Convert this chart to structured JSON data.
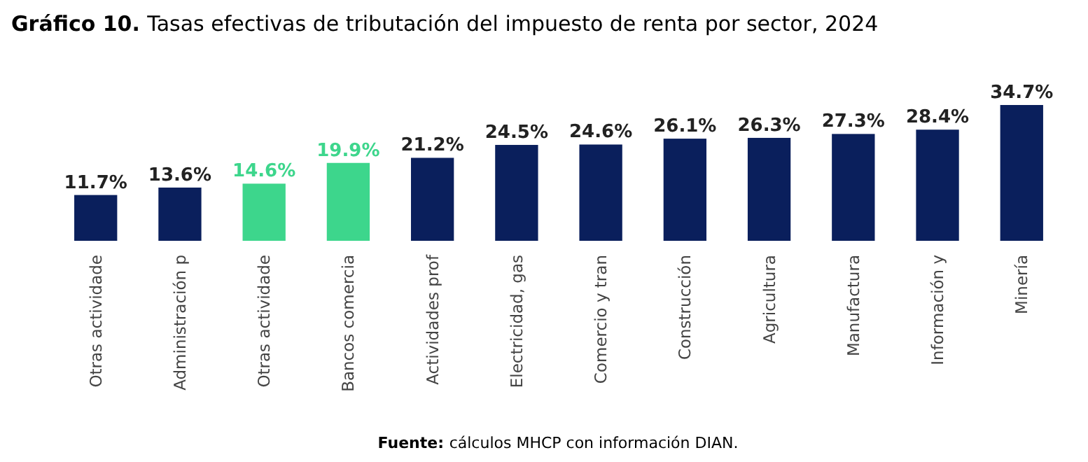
{
  "chart_data": {
    "type": "bar",
    "title": "Gráfico 10. Tasas efectivas de tributación del impuesto de renta por sector, 2024",
    "categories": [
      "Otras actividade",
      "Administración p",
      "Otras actividade",
      "Bancos comercia",
      "Actividades prof",
      "Electricidad, gas",
      "Comercio y tran",
      "Construcción",
      "Agricultura",
      "Manufactura",
      "Información y",
      "Minería"
    ],
    "values": [
      11.7,
      13.6,
      14.6,
      19.9,
      21.2,
      24.5,
      24.6,
      26.1,
      26.3,
      27.3,
      28.4,
      34.7
    ],
    "colors": [
      "#0a1f5c",
      "#0a1f5c",
      "#3dd68c",
      "#3dd68c",
      "#0a1f5c",
      "#0a1f5c",
      "#0a1f5c",
      "#0a1f5c",
      "#0a1f5c",
      "#0a1f5c",
      "#0a1f5c",
      "#0a1f5c"
    ],
    "value_labels": [
      "11.7%",
      "13.6%",
      "14.6%",
      "19.9%",
      "21.2%",
      "24.5%",
      "24.6%",
      "26.1%",
      "26.3%",
      "27.3%",
      "28.4%",
      "34.7%"
    ],
    "annotations": [
      "Fuente: cálculos MHCP con información DIAN."
    ]
  }
}
